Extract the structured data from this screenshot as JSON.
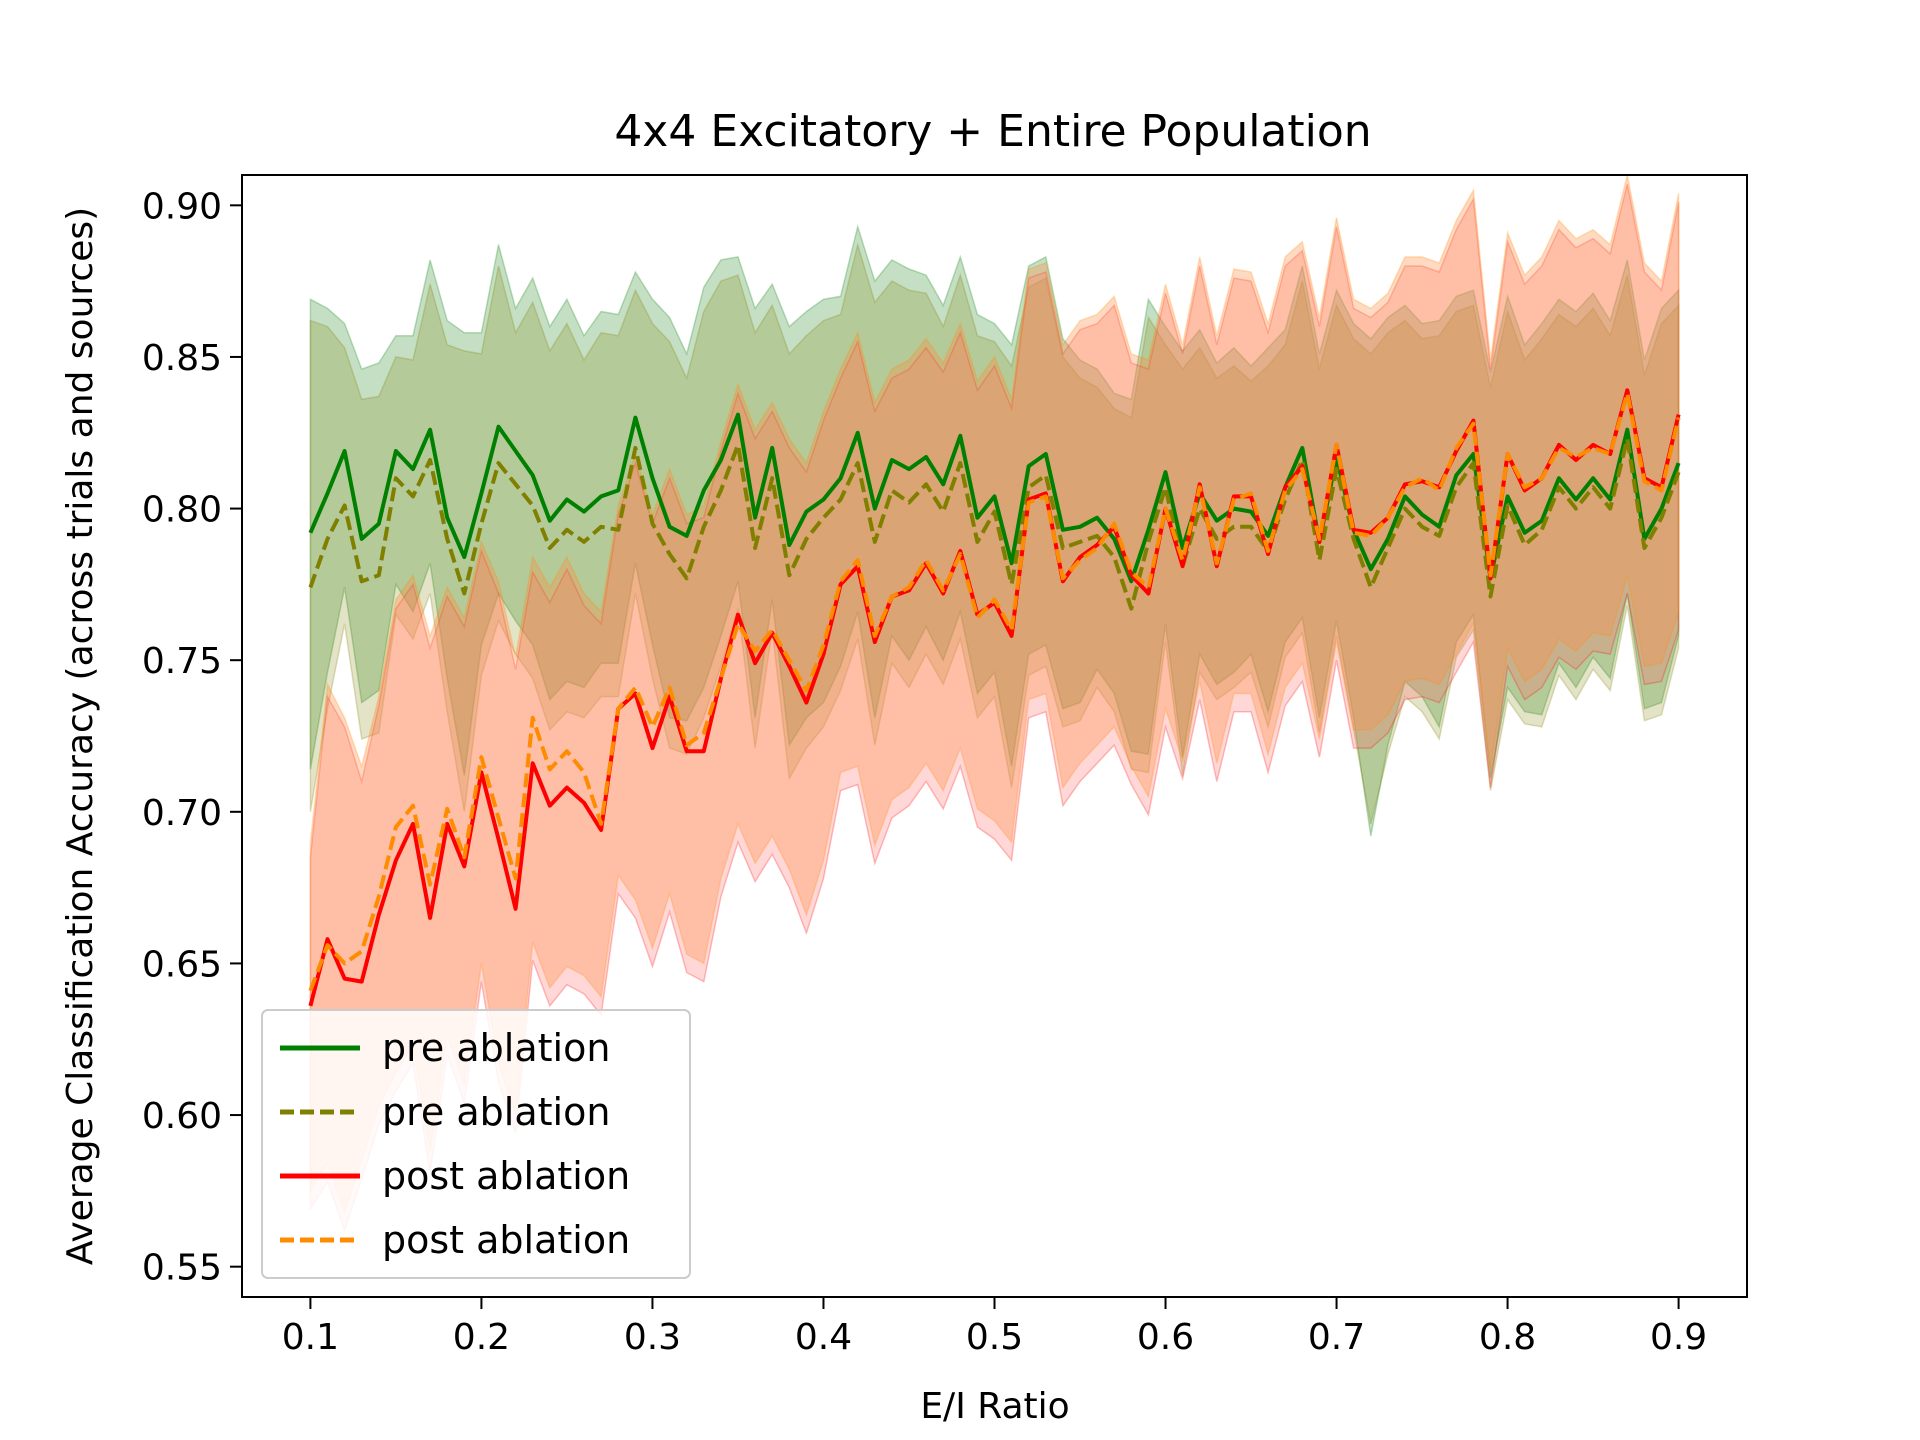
{
  "chart_data": {
    "type": "line",
    "title": "4x4 Excitatory + Entire Population",
    "xlabel": "E/I Ratio",
    "ylabel": "Average Classification Accuracy (across trials and sources)",
    "xlim": [
      0.06,
      0.94
    ],
    "ylim": [
      0.54,
      0.91
    ],
    "xticks": [
      "0.1",
      "0.2",
      "0.3",
      "0.4",
      "0.5",
      "0.6",
      "0.7",
      "0.8",
      "0.9"
    ],
    "yticks": [
      "0.55",
      "0.60",
      "0.65",
      "0.70",
      "0.75",
      "0.80",
      "0.85",
      "0.90"
    ],
    "grid": false,
    "legend_position": "lower-left",
    "x": [
      0.1,
      0.11,
      0.12,
      0.13,
      0.14,
      0.15,
      0.16,
      0.17,
      0.18,
      0.19,
      0.2,
      0.21,
      0.22,
      0.23,
      0.24,
      0.25,
      0.26,
      0.27,
      0.28,
      0.29,
      0.3,
      0.31,
      0.32,
      0.33,
      0.34,
      0.35,
      0.36,
      0.37,
      0.38,
      0.39,
      0.4,
      0.41,
      0.42,
      0.43,
      0.44,
      0.45,
      0.46,
      0.47,
      0.48,
      0.49,
      0.5,
      0.51,
      0.52,
      0.53,
      0.54,
      0.55,
      0.56,
      0.57,
      0.58,
      0.59,
      0.6,
      0.61,
      0.62,
      0.63,
      0.64,
      0.65,
      0.66,
      0.67,
      0.68,
      0.69,
      0.7,
      0.71,
      0.72,
      0.73,
      0.74,
      0.75,
      0.76,
      0.77,
      0.78,
      0.79,
      0.8,
      0.81,
      0.82,
      0.83,
      0.84,
      0.85,
      0.86,
      0.87,
      0.88,
      0.89,
      0.9
    ],
    "series": [
      {
        "name": "pre ablation",
        "color": "#008000",
        "dash": "solid",
        "values": [
          0.792,
          0.805,
          0.819,
          0.79,
          0.795,
          0.819,
          0.813,
          0.826,
          0.797,
          0.784,
          0.805,
          0.827,
          0.819,
          0.811,
          0.796,
          0.803,
          0.799,
          0.804,
          0.806,
          0.83,
          0.81,
          0.794,
          0.791,
          0.806,
          0.816,
          0.831,
          0.797,
          0.82,
          0.788,
          0.799,
          0.803,
          0.81,
          0.825,
          0.8,
          0.816,
          0.813,
          0.817,
          0.808,
          0.824,
          0.797,
          0.804,
          0.782,
          0.814,
          0.818,
          0.793,
          0.794,
          0.797,
          0.79,
          0.776,
          0.793,
          0.812,
          0.787,
          0.805,
          0.796,
          0.8,
          0.799,
          0.791,
          0.807,
          0.82,
          0.789,
          0.817,
          0.793,
          0.78,
          0.79,
          0.804,
          0.798,
          0.794,
          0.811,
          0.818,
          0.777,
          0.804,
          0.792,
          0.796,
          0.81,
          0.803,
          0.81,
          0.803,
          0.826,
          0.79,
          0.8,
          0.815
        ],
        "upper": [
          0.869,
          0.866,
          0.861,
          0.846,
          0.848,
          0.857,
          0.857,
          0.882,
          0.862,
          0.858,
          0.858,
          0.887,
          0.866,
          0.876,
          0.86,
          0.869,
          0.857,
          0.865,
          0.864,
          0.878,
          0.869,
          0.863,
          0.851,
          0.873,
          0.882,
          0.883,
          0.866,
          0.874,
          0.86,
          0.865,
          0.869,
          0.87,
          0.893,
          0.875,
          0.882,
          0.879,
          0.877,
          0.867,
          0.883,
          0.864,
          0.861,
          0.854,
          0.88,
          0.883,
          0.856,
          0.849,
          0.846,
          0.838,
          0.836,
          0.869,
          0.86,
          0.852,
          0.859,
          0.848,
          0.853,
          0.847,
          0.853,
          0.859,
          0.88,
          0.851,
          0.872,
          0.861,
          0.856,
          0.863,
          0.867,
          0.861,
          0.862,
          0.87,
          0.872,
          0.845,
          0.87,
          0.854,
          0.861,
          0.869,
          0.865,
          0.871,
          0.862,
          0.882,
          0.849,
          0.866,
          0.872
        ],
        "lower": [
          0.714,
          0.746,
          0.774,
          0.736,
          0.74,
          0.775,
          0.766,
          0.782,
          0.744,
          0.712,
          0.755,
          0.772,
          0.763,
          0.755,
          0.737,
          0.743,
          0.741,
          0.749,
          0.749,
          0.782,
          0.755,
          0.731,
          0.73,
          0.741,
          0.758,
          0.776,
          0.731,
          0.77,
          0.722,
          0.731,
          0.736,
          0.748,
          0.766,
          0.731,
          0.758,
          0.75,
          0.761,
          0.75,
          0.766,
          0.739,
          0.746,
          0.715,
          0.752,
          0.755,
          0.734,
          0.736,
          0.747,
          0.739,
          0.72,
          0.719,
          0.762,
          0.718,
          0.752,
          0.742,
          0.746,
          0.752,
          0.733,
          0.756,
          0.764,
          0.731,
          0.763,
          0.731,
          0.692,
          0.722,
          0.743,
          0.738,
          0.728,
          0.756,
          0.765,
          0.711,
          0.741,
          0.733,
          0.732,
          0.749,
          0.741,
          0.751,
          0.744,
          0.772,
          0.734,
          0.736,
          0.758
        ]
      },
      {
        "name": "pre ablation",
        "color": "#808000",
        "dash": "dashed",
        "values": [
          0.774,
          0.79,
          0.801,
          0.776,
          0.778,
          0.81,
          0.804,
          0.816,
          0.79,
          0.772,
          0.795,
          0.815,
          0.808,
          0.801,
          0.787,
          0.793,
          0.789,
          0.794,
          0.793,
          0.82,
          0.795,
          0.785,
          0.777,
          0.794,
          0.806,
          0.821,
          0.787,
          0.81,
          0.778,
          0.79,
          0.797,
          0.803,
          0.815,
          0.789,
          0.806,
          0.802,
          0.808,
          0.799,
          0.815,
          0.789,
          0.799,
          0.775,
          0.807,
          0.811,
          0.787,
          0.789,
          0.791,
          0.784,
          0.767,
          0.789,
          0.807,
          0.781,
          0.8,
          0.79,
          0.794,
          0.794,
          0.786,
          0.803,
          0.816,
          0.783,
          0.813,
          0.79,
          0.774,
          0.787,
          0.8,
          0.794,
          0.791,
          0.807,
          0.815,
          0.771,
          0.801,
          0.788,
          0.793,
          0.807,
          0.8,
          0.807,
          0.8,
          0.823,
          0.787,
          0.797,
          0.812
        ],
        "upper": [
          0.862,
          0.86,
          0.853,
          0.836,
          0.837,
          0.85,
          0.849,
          0.874,
          0.854,
          0.852,
          0.851,
          0.88,
          0.858,
          0.868,
          0.852,
          0.861,
          0.849,
          0.858,
          0.857,
          0.872,
          0.861,
          0.855,
          0.843,
          0.865,
          0.875,
          0.877,
          0.858,
          0.867,
          0.851,
          0.857,
          0.862,
          0.864,
          0.887,
          0.868,
          0.875,
          0.872,
          0.871,
          0.86,
          0.877,
          0.857,
          0.855,
          0.847,
          0.873,
          0.876,
          0.85,
          0.843,
          0.84,
          0.833,
          0.83,
          0.863,
          0.854,
          0.846,
          0.853,
          0.843,
          0.847,
          0.842,
          0.847,
          0.854,
          0.875,
          0.846,
          0.867,
          0.856,
          0.851,
          0.858,
          0.862,
          0.856,
          0.857,
          0.865,
          0.867,
          0.84,
          0.865,
          0.849,
          0.856,
          0.864,
          0.86,
          0.866,
          0.857,
          0.877,
          0.844,
          0.861,
          0.867
        ],
        "lower": [
          0.7,
          0.734,
          0.762,
          0.724,
          0.726,
          0.765,
          0.757,
          0.772,
          0.733,
          0.7,
          0.745,
          0.763,
          0.752,
          0.744,
          0.727,
          0.733,
          0.731,
          0.738,
          0.738,
          0.772,
          0.744,
          0.721,
          0.719,
          0.731,
          0.748,
          0.767,
          0.721,
          0.76,
          0.711,
          0.721,
          0.728,
          0.74,
          0.757,
          0.722,
          0.749,
          0.741,
          0.752,
          0.742,
          0.757,
          0.731,
          0.738,
          0.708,
          0.745,
          0.748,
          0.728,
          0.73,
          0.741,
          0.733,
          0.714,
          0.713,
          0.756,
          0.712,
          0.746,
          0.737,
          0.741,
          0.746,
          0.728,
          0.751,
          0.759,
          0.726,
          0.758,
          0.727,
          0.696,
          0.719,
          0.738,
          0.733,
          0.724,
          0.751,
          0.76,
          0.707,
          0.737,
          0.729,
          0.728,
          0.745,
          0.737,
          0.747,
          0.74,
          0.768,
          0.73,
          0.732,
          0.754
        ]
      },
      {
        "name": "post ablation",
        "color": "#ff0000",
        "dash": "solid",
        "values": [
          0.636,
          0.658,
          0.645,
          0.644,
          0.666,
          0.684,
          0.696,
          0.665,
          0.696,
          0.682,
          0.713,
          0.691,
          0.668,
          0.716,
          0.702,
          0.708,
          0.703,
          0.694,
          0.734,
          0.739,
          0.721,
          0.738,
          0.72,
          0.72,
          0.744,
          0.765,
          0.749,
          0.759,
          0.748,
          0.736,
          0.752,
          0.775,
          0.781,
          0.756,
          0.771,
          0.773,
          0.782,
          0.772,
          0.786,
          0.765,
          0.769,
          0.758,
          0.803,
          0.805,
          0.776,
          0.784,
          0.788,
          0.794,
          0.778,
          0.772,
          0.8,
          0.781,
          0.808,
          0.781,
          0.804,
          0.804,
          0.785,
          0.807,
          0.814,
          0.789,
          0.821,
          0.793,
          0.792,
          0.797,
          0.808,
          0.809,
          0.807,
          0.819,
          0.829,
          0.777,
          0.818,
          0.806,
          0.81,
          0.821,
          0.816,
          0.821,
          0.818,
          0.839,
          0.81,
          0.807,
          0.831
        ],
        "upper": [
          0.685,
          0.738,
          0.728,
          0.71,
          0.735,
          0.767,
          0.775,
          0.754,
          0.771,
          0.761,
          0.786,
          0.772,
          0.747,
          0.779,
          0.769,
          0.78,
          0.768,
          0.762,
          0.798,
          0.815,
          0.795,
          0.81,
          0.795,
          0.797,
          0.819,
          0.838,
          0.823,
          0.832,
          0.82,
          0.812,
          0.829,
          0.843,
          0.855,
          0.832,
          0.843,
          0.846,
          0.853,
          0.845,
          0.858,
          0.839,
          0.847,
          0.833,
          0.876,
          0.878,
          0.851,
          0.859,
          0.861,
          0.867,
          0.848,
          0.846,
          0.871,
          0.851,
          0.88,
          0.854,
          0.876,
          0.875,
          0.858,
          0.88,
          0.885,
          0.86,
          0.893,
          0.866,
          0.863,
          0.868,
          0.88,
          0.88,
          0.878,
          0.892,
          0.902,
          0.846,
          0.888,
          0.874,
          0.88,
          0.892,
          0.886,
          0.889,
          0.884,
          0.907,
          0.878,
          0.872,
          0.901
        ],
        "lower": [
          0.569,
          0.578,
          0.562,
          0.579,
          0.597,
          0.608,
          0.617,
          0.581,
          0.62,
          0.604,
          0.644,
          0.611,
          0.594,
          0.651,
          0.636,
          0.643,
          0.64,
          0.633,
          0.673,
          0.665,
          0.649,
          0.667,
          0.647,
          0.644,
          0.672,
          0.69,
          0.677,
          0.686,
          0.675,
          0.66,
          0.678,
          0.707,
          0.709,
          0.683,
          0.698,
          0.702,
          0.71,
          0.701,
          0.715,
          0.695,
          0.691,
          0.684,
          0.731,
          0.733,
          0.702,
          0.71,
          0.716,
          0.722,
          0.709,
          0.699,
          0.728,
          0.711,
          0.737,
          0.71,
          0.733,
          0.733,
          0.713,
          0.735,
          0.743,
          0.718,
          0.75,
          0.721,
          0.721,
          0.726,
          0.737,
          0.738,
          0.736,
          0.746,
          0.756,
          0.708,
          0.748,
          0.737,
          0.741,
          0.751,
          0.747,
          0.753,
          0.752,
          0.772,
          0.742,
          0.743,
          0.76
        ]
      },
      {
        "name": "post ablation",
        "color": "#ff8c00",
        "dash": "dashed",
        "values": [
          0.641,
          0.656,
          0.65,
          0.654,
          0.672,
          0.695,
          0.702,
          0.676,
          0.701,
          0.685,
          0.718,
          0.698,
          0.678,
          0.731,
          0.714,
          0.72,
          0.713,
          0.696,
          0.734,
          0.741,
          0.728,
          0.741,
          0.722,
          0.726,
          0.744,
          0.762,
          0.753,
          0.76,
          0.75,
          0.74,
          0.755,
          0.776,
          0.783,
          0.758,
          0.771,
          0.774,
          0.783,
          0.773,
          0.785,
          0.764,
          0.77,
          0.76,
          0.802,
          0.804,
          0.777,
          0.783,
          0.787,
          0.795,
          0.779,
          0.774,
          0.8,
          0.783,
          0.807,
          0.782,
          0.803,
          0.805,
          0.786,
          0.806,
          0.813,
          0.79,
          0.821,
          0.792,
          0.791,
          0.797,
          0.807,
          0.81,
          0.806,
          0.82,
          0.828,
          0.778,
          0.818,
          0.807,
          0.81,
          0.82,
          0.817,
          0.82,
          0.818,
          0.838,
          0.809,
          0.806,
          0.83
        ],
        "upper": [
          0.69,
          0.742,
          0.731,
          0.715,
          0.738,
          0.77,
          0.778,
          0.758,
          0.774,
          0.764,
          0.789,
          0.776,
          0.751,
          0.784,
          0.774,
          0.784,
          0.772,
          0.766,
          0.801,
          0.818,
          0.798,
          0.813,
          0.798,
          0.801,
          0.822,
          0.841,
          0.826,
          0.835,
          0.823,
          0.815,
          0.832,
          0.846,
          0.858,
          0.835,
          0.846,
          0.849,
          0.856,
          0.848,
          0.861,
          0.842,
          0.85,
          0.836,
          0.879,
          0.881,
          0.854,
          0.862,
          0.864,
          0.87,
          0.851,
          0.849,
          0.874,
          0.854,
          0.883,
          0.857,
          0.879,
          0.878,
          0.861,
          0.883,
          0.888,
          0.863,
          0.896,
          0.869,
          0.866,
          0.871,
          0.883,
          0.883,
          0.881,
          0.895,
          0.905,
          0.849,
          0.891,
          0.877,
          0.883,
          0.895,
          0.889,
          0.892,
          0.887,
          0.91,
          0.881,
          0.875,
          0.904
        ],
        "lower": [
          0.575,
          0.584,
          0.568,
          0.585,
          0.603,
          0.614,
          0.623,
          0.588,
          0.626,
          0.61,
          0.65,
          0.617,
          0.6,
          0.657,
          0.642,
          0.649,
          0.646,
          0.639,
          0.679,
          0.671,
          0.655,
          0.673,
          0.653,
          0.65,
          0.678,
          0.696,
          0.683,
          0.692,
          0.681,
          0.666,
          0.684,
          0.713,
          0.715,
          0.689,
          0.704,
          0.708,
          0.716,
          0.707,
          0.721,
          0.701,
          0.697,
          0.69,
          0.737,
          0.739,
          0.708,
          0.716,
          0.722,
          0.728,
          0.715,
          0.705,
          0.734,
          0.717,
          0.743,
          0.716,
          0.739,
          0.739,
          0.719,
          0.741,
          0.749,
          0.724,
          0.756,
          0.727,
          0.727,
          0.732,
          0.743,
          0.744,
          0.742,
          0.752,
          0.762,
          0.714,
          0.754,
          0.743,
          0.747,
          0.757,
          0.753,
          0.759,
          0.758,
          0.778,
          0.748,
          0.749,
          0.766
        ]
      }
    ]
  }
}
